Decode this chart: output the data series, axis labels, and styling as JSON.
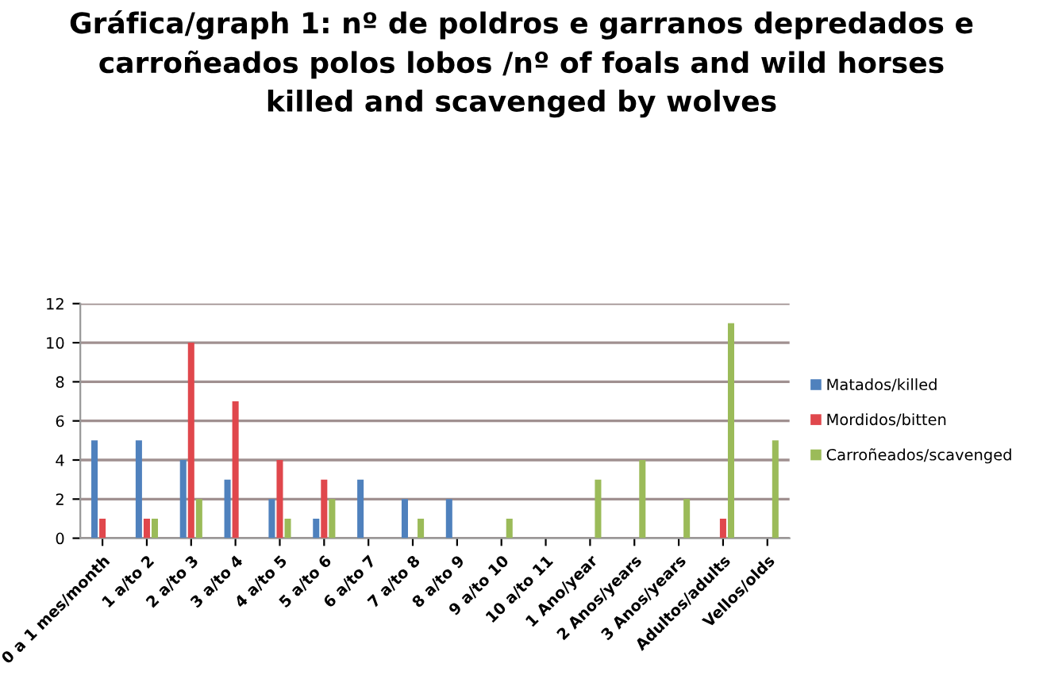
{
  "chart_data": {
    "type": "bar",
    "title": "Gráfica/graph 1: nº de poldros e garranos depredados e\ncarroñeados polos lobos /nº of foals and wild horses\nkilled and scavenged by wolves",
    "categories": [
      "0 a 1 mes/month",
      "1 a/to 2",
      "2 a/to 3",
      "3 a/to 4",
      "4 a/to 5",
      "5 a/to 6",
      "6 a/to 7",
      "7 a/to 8",
      "8 a/to 9",
      "9 a/to 10",
      "10 a/to 11",
      "1 Ano/year",
      "2 Anos/years",
      "3 Anos/years",
      "Adultos/adults",
      "Vellos/olds"
    ],
    "series": [
      {
        "name": "Matados/killed",
        "color": "#4f81bd",
        "values": [
          5,
          5,
          4,
          3,
          2,
          1,
          3,
          2,
          2,
          0,
          0,
          0,
          0,
          0,
          0,
          0
        ]
      },
      {
        "name": "Mordidos/bitten",
        "color": "#e0474c",
        "values": [
          1,
          1,
          10,
          7,
          4,
          3,
          0,
          0,
          0,
          0,
          0,
          0,
          0,
          0,
          1,
          0
        ]
      },
      {
        "name": "Carroñeados/scavenged",
        "color": "#9bbb59",
        "values": [
          0,
          1,
          2,
          0,
          1,
          2,
          0,
          1,
          0,
          1,
          0,
          3,
          4,
          2,
          11,
          5
        ]
      }
    ],
    "ylim": [
      0,
      12
    ],
    "yticks": [
      0,
      2,
      4,
      6,
      8,
      10,
      12
    ],
    "grid": "y",
    "legend": "right"
  }
}
